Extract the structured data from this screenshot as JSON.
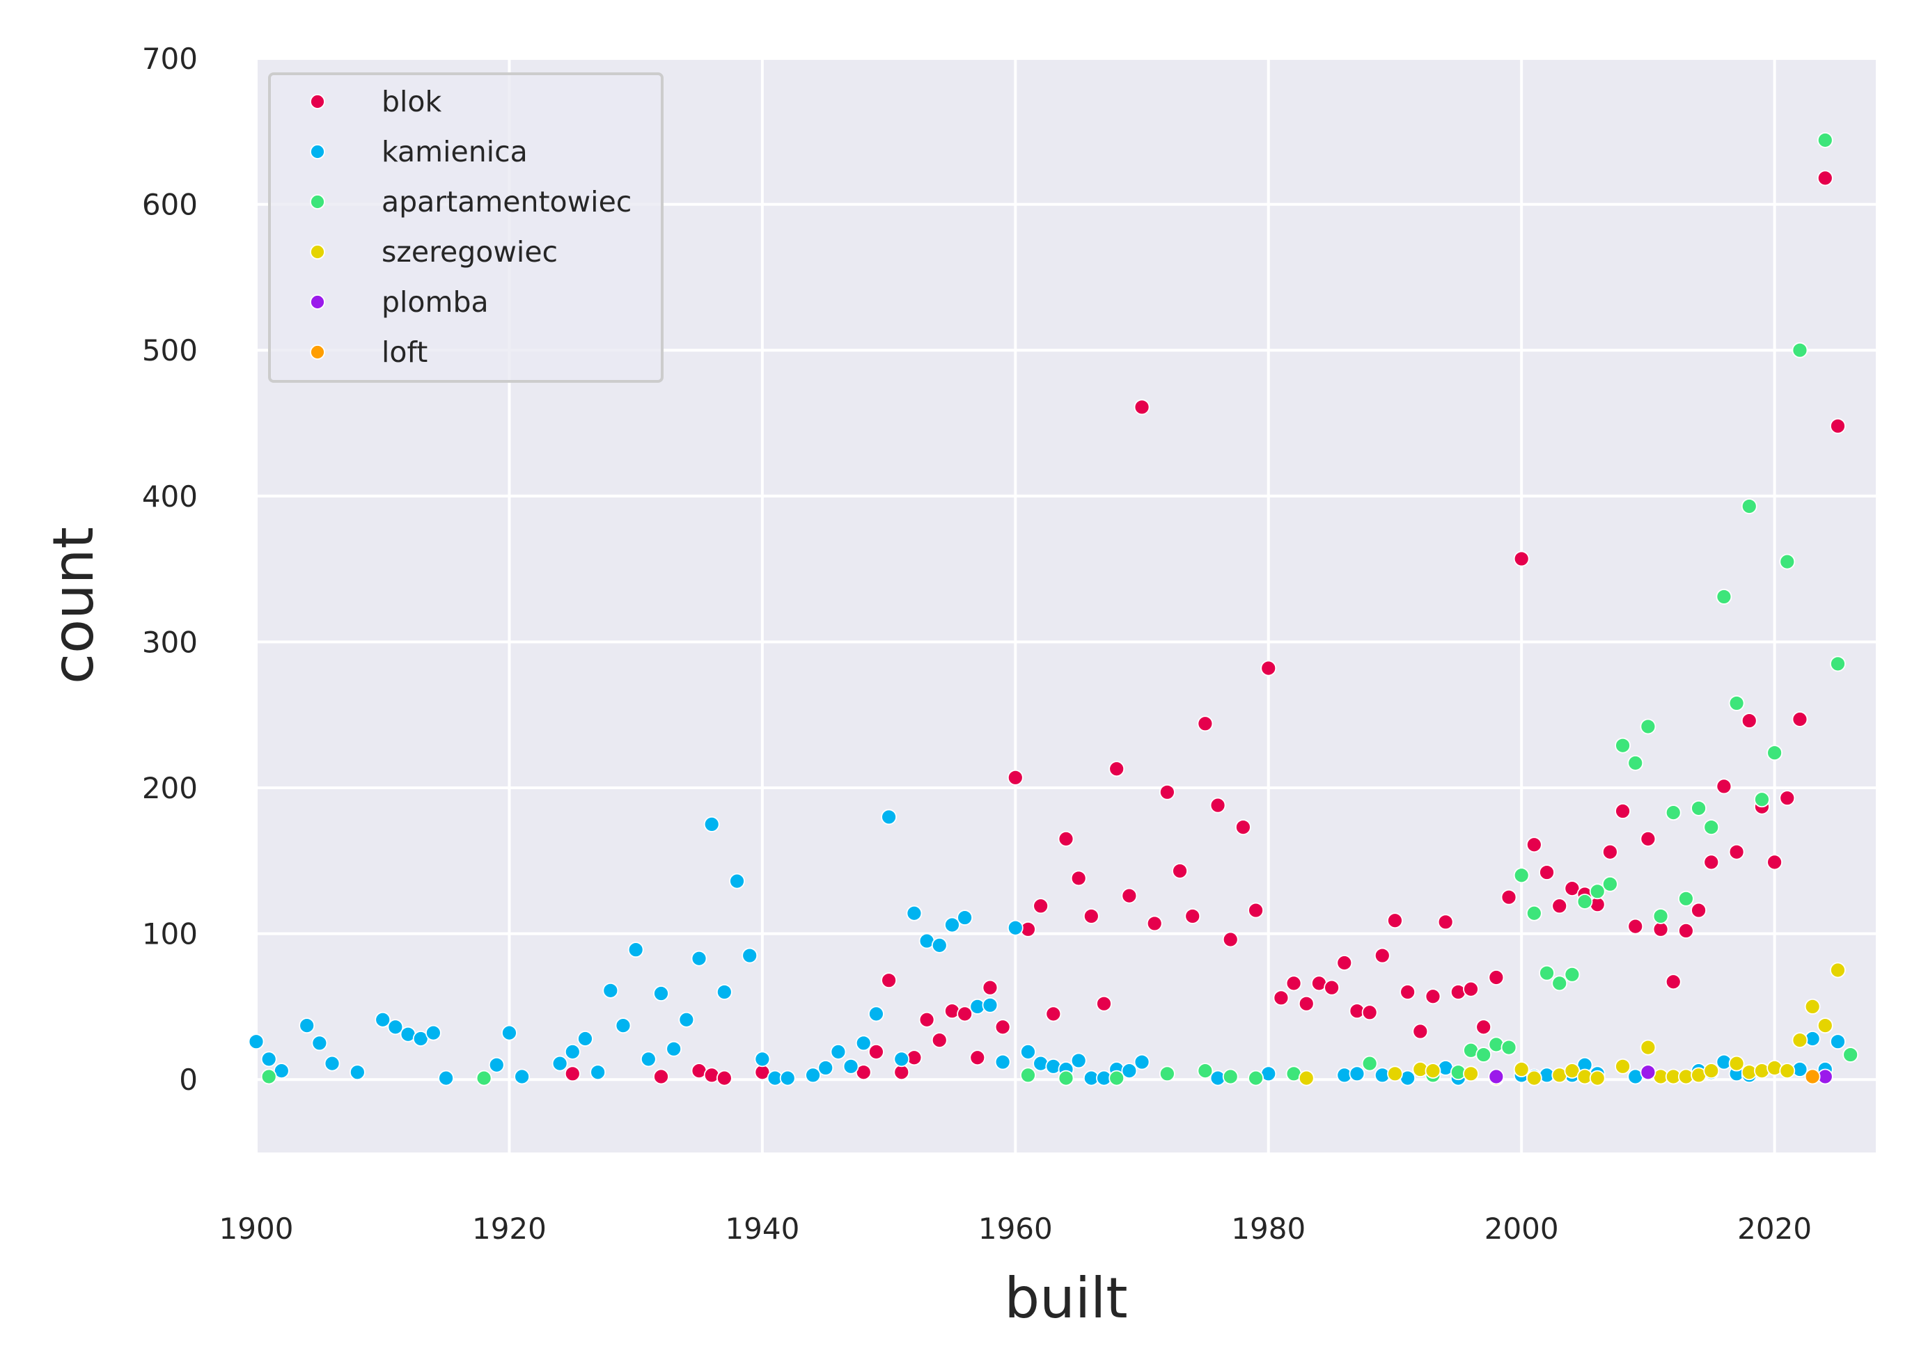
{
  "chart_data": {
    "type": "scatter",
    "title": "",
    "xlabel": "built",
    "ylabel": "count",
    "xlim": [
      1900,
      2028
    ],
    "ylim": [
      -50,
      700
    ],
    "xticks": [
      1900,
      1920,
      1940,
      1960,
      1980,
      2000,
      2020
    ],
    "yticks": [
      0,
      100,
      200,
      300,
      400,
      500,
      600,
      700
    ],
    "grid": true,
    "legend_position": "top-left",
    "series": [
      {
        "name": "blok",
        "color": "#e5004c",
        "points": [
          [
            1925,
            4
          ],
          [
            1932,
            2
          ],
          [
            1935,
            6
          ],
          [
            1936,
            3
          ],
          [
            1937,
            1
          ],
          [
            1940,
            5
          ],
          [
            1948,
            5
          ],
          [
            1949,
            19
          ],
          [
            1950,
            68
          ],
          [
            1951,
            5
          ],
          [
            1952,
            15
          ],
          [
            1953,
            41
          ],
          [
            1954,
            27
          ],
          [
            1955,
            47
          ],
          [
            1956,
            45
          ],
          [
            1957,
            15
          ],
          [
            1958,
            63
          ],
          [
            1959,
            36
          ],
          [
            1960,
            207
          ],
          [
            1961,
            103
          ],
          [
            1962,
            119
          ],
          [
            1963,
            45
          ],
          [
            1964,
            165
          ],
          [
            1965,
            138
          ],
          [
            1966,
            112
          ],
          [
            1967,
            52
          ],
          [
            1968,
            213
          ],
          [
            1969,
            126
          ],
          [
            1970,
            461
          ],
          [
            1971,
            107
          ],
          [
            1972,
            197
          ],
          [
            1973,
            143
          ],
          [
            1974,
            112
          ],
          [
            1975,
            244
          ],
          [
            1976,
            188
          ],
          [
            1977,
            96
          ],
          [
            1978,
            173
          ],
          [
            1979,
            116
          ],
          [
            1980,
            282
          ],
          [
            1981,
            56
          ],
          [
            1982,
            66
          ],
          [
            1983,
            52
          ],
          [
            1984,
            66
          ],
          [
            1985,
            63
          ],
          [
            1986,
            80
          ],
          [
            1987,
            47
          ],
          [
            1988,
            46
          ],
          [
            1989,
            85
          ],
          [
            1990,
            109
          ],
          [
            1991,
            60
          ],
          [
            1992,
            33
          ],
          [
            1993,
            57
          ],
          [
            1994,
            108
          ],
          [
            1995,
            60
          ],
          [
            1996,
            62
          ],
          [
            1997,
            36
          ],
          [
            1998,
            70
          ],
          [
            1999,
            125
          ],
          [
            2000,
            357
          ],
          [
            2001,
            161
          ],
          [
            2002,
            142
          ],
          [
            2003,
            119
          ],
          [
            2004,
            131
          ],
          [
            2005,
            127
          ],
          [
            2006,
            120
          ],
          [
            2007,
            156
          ],
          [
            2008,
            184
          ],
          [
            2009,
            105
          ],
          [
            2010,
            165
          ],
          [
            2011,
            103
          ],
          [
            2012,
            67
          ],
          [
            2013,
            102
          ],
          [
            2014,
            116
          ],
          [
            2015,
            149
          ],
          [
            2016,
            201
          ],
          [
            2017,
            156
          ],
          [
            2018,
            246
          ],
          [
            2019,
            187
          ],
          [
            2020,
            149
          ],
          [
            2021,
            193
          ],
          [
            2022,
            247
          ],
          [
            2024,
            618
          ],
          [
            2025,
            448
          ]
        ]
      },
      {
        "name": "kamienica",
        "color": "#00b3f0",
        "points": [
          [
            1900,
            26
          ],
          [
            1901,
            14
          ],
          [
            1902,
            6
          ],
          [
            1904,
            37
          ],
          [
            1905,
            25
          ],
          [
            1906,
            11
          ],
          [
            1908,
            5
          ],
          [
            1910,
            41
          ],
          [
            1911,
            36
          ],
          [
            1912,
            31
          ],
          [
            1913,
            28
          ],
          [
            1914,
            32
          ],
          [
            1915,
            1
          ],
          [
            1919,
            10
          ],
          [
            1920,
            32
          ],
          [
            1921,
            2
          ],
          [
            1924,
            11
          ],
          [
            1925,
            19
          ],
          [
            1926,
            28
          ],
          [
            1927,
            5
          ],
          [
            1928,
            61
          ],
          [
            1929,
            37
          ],
          [
            1930,
            89
          ],
          [
            1931,
            14
          ],
          [
            1932,
            59
          ],
          [
            1933,
            21
          ],
          [
            1934,
            41
          ],
          [
            1935,
            83
          ],
          [
            1936,
            175
          ],
          [
            1937,
            60
          ],
          [
            1938,
            136
          ],
          [
            1939,
            85
          ],
          [
            1940,
            14
          ],
          [
            1941,
            1
          ],
          [
            1942,
            1
          ],
          [
            1944,
            3
          ],
          [
            1945,
            8
          ],
          [
            1946,
            19
          ],
          [
            1947,
            9
          ],
          [
            1948,
            25
          ],
          [
            1949,
            45
          ],
          [
            1950,
            180
          ],
          [
            1951,
            14
          ],
          [
            1952,
            114
          ],
          [
            1953,
            95
          ],
          [
            1954,
            92
          ],
          [
            1955,
            106
          ],
          [
            1956,
            111
          ],
          [
            1957,
            50
          ],
          [
            1958,
            51
          ],
          [
            1959,
            12
          ],
          [
            1960,
            104
          ],
          [
            1961,
            19
          ],
          [
            1962,
            11
          ],
          [
            1963,
            9
          ],
          [
            1964,
            7
          ],
          [
            1965,
            13
          ],
          [
            1966,
            1
          ],
          [
            1967,
            1
          ],
          [
            1968,
            7
          ],
          [
            1969,
            6
          ],
          [
            1970,
            12
          ],
          [
            1976,
            1
          ],
          [
            1980,
            4
          ],
          [
            1986,
            3
          ],
          [
            1987,
            4
          ],
          [
            1989,
            3
          ],
          [
            1991,
            1
          ],
          [
            1994,
            8
          ],
          [
            1995,
            1
          ],
          [
            2000,
            3
          ],
          [
            2001,
            2
          ],
          [
            2002,
            3
          ],
          [
            2004,
            3
          ],
          [
            2005,
            10
          ],
          [
            2006,
            4
          ],
          [
            2009,
            2
          ],
          [
            2014,
            6
          ],
          [
            2015,
            5
          ],
          [
            2016,
            12
          ],
          [
            2017,
            4
          ],
          [
            2018,
            3
          ],
          [
            2019,
            6
          ],
          [
            2022,
            7
          ],
          [
            2023,
            28
          ],
          [
            2024,
            7
          ],
          [
            2025,
            26
          ]
        ]
      },
      {
        "name": "apartamentowiec",
        "color": "#3de57a",
        "points": [
          [
            1901,
            2
          ],
          [
            1918,
            1
          ],
          [
            1961,
            3
          ],
          [
            1964,
            1
          ],
          [
            1968,
            1
          ],
          [
            1972,
            4
          ],
          [
            1975,
            6
          ],
          [
            1977,
            2
          ],
          [
            1979,
            1
          ],
          [
            1982,
            4
          ],
          [
            1988,
            11
          ],
          [
            1993,
            3
          ],
          [
            1995,
            5
          ],
          [
            1996,
            20
          ],
          [
            1997,
            17
          ],
          [
            1998,
            24
          ],
          [
            1999,
            22
          ],
          [
            2000,
            140
          ],
          [
            2001,
            114
          ],
          [
            2002,
            73
          ],
          [
            2003,
            66
          ],
          [
            2004,
            72
          ],
          [
            2005,
            122
          ],
          [
            2006,
            129
          ],
          [
            2007,
            134
          ],
          [
            2008,
            229
          ],
          [
            2009,
            217
          ],
          [
            2010,
            242
          ],
          [
            2011,
            112
          ],
          [
            2012,
            183
          ],
          [
            2013,
            124
          ],
          [
            2014,
            186
          ],
          [
            2015,
            173
          ],
          [
            2016,
            331
          ],
          [
            2017,
            258
          ],
          [
            2018,
            393
          ],
          [
            2019,
            192
          ],
          [
            2020,
            224
          ],
          [
            2021,
            355
          ],
          [
            2022,
            500
          ],
          [
            2024,
            644
          ],
          [
            2025,
            285
          ],
          [
            2026,
            17
          ]
        ]
      },
      {
        "name": "szeregowiec",
        "color": "#e5d400",
        "points": [
          [
            1983,
            1
          ],
          [
            1990,
            4
          ],
          [
            1992,
            7
          ],
          [
            1993,
            6
          ],
          [
            1996,
            4
          ],
          [
            1998,
            1
          ],
          [
            2000,
            7
          ],
          [
            2001,
            1
          ],
          [
            2003,
            3
          ],
          [
            2004,
            6
          ],
          [
            2005,
            2
          ],
          [
            2006,
            1
          ],
          [
            2008,
            9
          ],
          [
            2010,
            22
          ],
          [
            2011,
            2
          ],
          [
            2012,
            2
          ],
          [
            2013,
            2
          ],
          [
            2014,
            3
          ],
          [
            2015,
            6
          ],
          [
            2017,
            11
          ],
          [
            2018,
            5
          ],
          [
            2019,
            6
          ],
          [
            2020,
            8
          ],
          [
            2021,
            6
          ],
          [
            2022,
            27
          ],
          [
            2023,
            50
          ],
          [
            2024,
            37
          ],
          [
            2025,
            75
          ]
        ]
      },
      {
        "name": "plomba",
        "color": "#9b1aeb",
        "points": [
          [
            1998,
            2
          ],
          [
            2010,
            5
          ],
          [
            2024,
            2
          ]
        ]
      },
      {
        "name": "loft",
        "color": "#ff9e00",
        "points": [
          [
            2023,
            2
          ]
        ]
      }
    ]
  }
}
